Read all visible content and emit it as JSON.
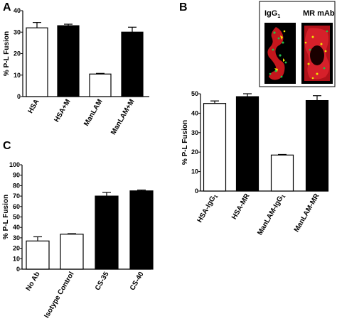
{
  "chart_data": [
    {
      "panel": "A",
      "type": "bar",
      "ylabel": "% P-L Fusion",
      "ylim": [
        0,
        40
      ],
      "yticks": [
        0,
        10,
        20,
        30,
        40
      ],
      "categories": [
        "HSA",
        "HSA+M",
        "ManLAM",
        "ManLAM+M"
      ],
      "values": [
        32,
        33,
        10.5,
        30
      ],
      "errors": [
        2.5,
        0.7,
        0.3,
        2.3
      ],
      "fills": [
        "#ffffff",
        "#000000",
        "#ffffff",
        "#000000"
      ]
    },
    {
      "panel": "B",
      "type": "bar",
      "ylabel": "% P-L Fusion",
      "ylim": [
        0,
        50
      ],
      "yticks": [
        0,
        10,
        20,
        30,
        40,
        50
      ],
      "categories": [
        "HSA-IgG1",
        "HSA-MR",
        "ManLAM-IgG1",
        "ManLAM-MR"
      ],
      "values": [
        45,
        48.5,
        18.5,
        46.5
      ],
      "errors": [
        1.3,
        1.5,
        0.3,
        2.5
      ],
      "fills": [
        "#ffffff",
        "#000000",
        "#ffffff",
        "#000000"
      ],
      "inset_labels": [
        "IgG1",
        "MR mAb"
      ]
    },
    {
      "panel": "C",
      "type": "bar",
      "ylabel": "% P-L Fusion",
      "ylim": [
        0,
        100
      ],
      "yticks": [
        0,
        10,
        20,
        30,
        40,
        50,
        60,
        70,
        80,
        90,
        100
      ],
      "categories": [
        "No Ab",
        "Isotype Control",
        "CS-35",
        "CS-40"
      ],
      "values": [
        27,
        33.5,
        70,
        75
      ],
      "errors": [
        4,
        0.5,
        3.5,
        0.8
      ],
      "fills": [
        "#ffffff",
        "#ffffff",
        "#000000",
        "#000000"
      ]
    }
  ]
}
